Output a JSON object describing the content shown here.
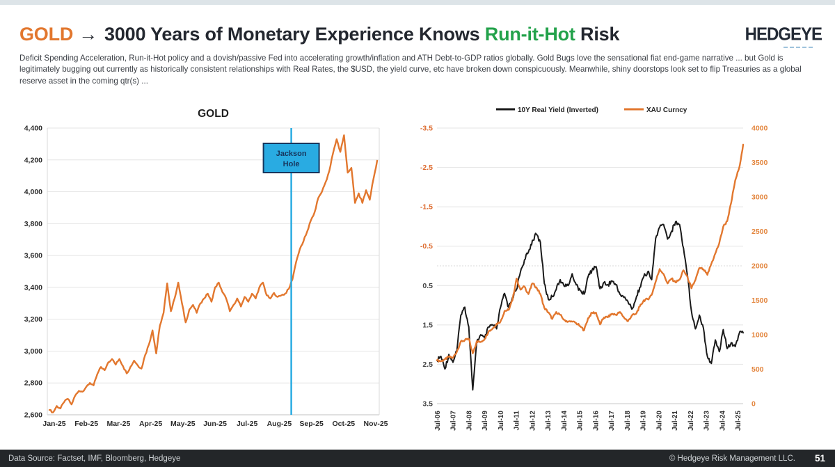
{
  "header": {
    "title_prefix": "GOLD",
    "title_arrow": "→",
    "title_main": "3000 Years of Monetary Experience Knows",
    "title_highlight": "Run-it-Hot",
    "title_suffix": " Risk",
    "logo": "HEDGEYE",
    "subtitle": "Deficit Spending Acceleration, Run-it-Hot policy and a dovish/passive Fed into accelerating growth/inflation and ATH Debt-to-GDP ratios globally. Gold Bugs love the sensational fiat end-game narrative ... but Gold is legitimately bugging out currently as historically consistent relationships with Real Rates, the $USD, the yield curve, etc have broken down conspicuously. Meanwhile, shiny doorstops look set to flip Treasuries as a global reserve asset in the coming qtr(s) ..."
  },
  "footer": {
    "source": "Data Source: Factset, IMF, Bloomberg, Hedgeye",
    "copyright": "© Hedgeye Risk Management LLC.",
    "page_number": "51"
  },
  "colors": {
    "accent_orange": "#e2772e",
    "accent_green": "#23a24b",
    "series_black": "#1a1a1a",
    "annotation_blue": "#29abe2",
    "annotation_border": "#17365d",
    "axis_orange_label": "#dd6b2f",
    "axis_gray_label": "#444444",
    "gridline": "#e4e4e4",
    "footer_bg": "#232629"
  },
  "chart_data": [
    {
      "type": "line",
      "title": "GOLD",
      "x_tick_labels": [
        "Jan-25",
        "Feb-25",
        "Mar-25",
        "Apr-25",
        "May-25",
        "Jun-25",
        "Jul-25",
        "Aug-25",
        "Sep-25",
        "Oct-25",
        "Nov-25"
      ],
      "y_tick_labels": [
        "2,600",
        "2,800",
        "3,000",
        "3,200",
        "3,400",
        "3,600",
        "3,800",
        "4,000",
        "4,200",
        "4,400"
      ],
      "y_tick_values": [
        2600,
        2800,
        3000,
        3200,
        3400,
        3600,
        3800,
        4000,
        4200,
        4400
      ],
      "ylim": [
        2600,
        4400
      ],
      "grid": true,
      "legend_position": "none",
      "annotation": {
        "label_lines": [
          "Jackson",
          "Hole"
        ],
        "line_x_fraction": 0.735
      },
      "series": [
        {
          "name": "GOLD",
          "color": "#e2772e",
          "values": [
            2630,
            2615,
            2655,
            2640,
            2680,
            2700,
            2665,
            2720,
            2750,
            2745,
            2775,
            2800,
            2785,
            2855,
            2900,
            2880,
            2930,
            2950,
            2915,
            2950,
            2905,
            2860,
            2900,
            2940,
            2910,
            2890,
            2975,
            3040,
            3130,
            2985,
            3160,
            3240,
            3425,
            3250,
            3330,
            3430,
            3300,
            3180,
            3260,
            3290,
            3240,
            3300,
            3330,
            3360,
            3310,
            3400,
            3430,
            3370,
            3330,
            3250,
            3290,
            3330,
            3280,
            3340,
            3310,
            3360,
            3330,
            3400,
            3430,
            3350,
            3330,
            3365,
            3340,
            3350,
            3360,
            3390,
            3450,
            3560,
            3640,
            3690,
            3750,
            3820,
            3870,
            3960,
            4000,
            4060,
            4130,
            4240,
            4330,
            4250,
            4355,
            4120,
            4150,
            3930,
            3990,
            3930,
            4010,
            3950,
            4080,
            4195
          ]
        }
      ]
    },
    {
      "type": "line",
      "title": "",
      "x_tick_labels": [
        "Jul-06",
        "Jul-07",
        "Jul-08",
        "Jul-09",
        "Jul-10",
        "Jul-11",
        "Jul-12",
        "Jul-13",
        "Jul-14",
        "Jul-15",
        "Jul-16",
        "Jul-17",
        "Jul-18",
        "Jul-19",
        "Jul-20",
        "Jul-21",
        "Jul-22",
        "Jul-23",
        "Jul-24",
        "Jul-25"
      ],
      "left_y_tick_labels": [
        "-3.5",
        "-2.5",
        "-1.5",
        "-0.5",
        "0.5",
        "1.5",
        "2.5",
        "3.5"
      ],
      "left_y_tick_values": [
        -3.5,
        -2.5,
        -1.5,
        -0.5,
        0.5,
        1.5,
        2.5,
        3.5
      ],
      "left_ylim_top_to_bottom": [
        -3.5,
        3.5
      ],
      "left_axis_inverted": true,
      "right_y_tick_labels": [
        "4000",
        "3500",
        "3000",
        "2500",
        "2000",
        "1500",
        "1000",
        "500",
        "0"
      ],
      "right_y_tick_values": [
        4000,
        3500,
        3000,
        2500,
        2000,
        1500,
        1000,
        500,
        0
      ],
      "right_ylim": [
        0,
        4000
      ],
      "grid": true,
      "legend_position": "top",
      "series": [
        {
          "name": "10Y Real Yield (Inverted)",
          "axis": "left",
          "color": "#1a1a1a",
          "values": [
            2.4,
            2.3,
            2.62,
            2.25,
            2.45,
            2.15,
            1.25,
            1.05,
            1.55,
            3.15,
            1.95,
            1.75,
            1.85,
            1.55,
            1.5,
            1.6,
            1.05,
            0.7,
            1.05,
            0.8,
            0.6,
            0.15,
            -0.15,
            -0.35,
            -0.65,
            -0.8,
            -0.6,
            0.45,
            0.85,
            0.78,
            0.6,
            0.35,
            0.52,
            0.5,
            0.2,
            0.48,
            0.62,
            0.72,
            0.28,
            0.1,
            0.02,
            0.58,
            0.42,
            0.48,
            0.38,
            0.48,
            0.72,
            0.8,
            0.9,
            1.1,
            0.85,
            0.55,
            0.28,
            0.15,
            0.35,
            -0.7,
            -0.98,
            -1.05,
            -0.68,
            -0.88,
            -1.12,
            -1.05,
            -0.45,
            0.25,
            1.15,
            1.6,
            1.25,
            1.58,
            2.3,
            2.48,
            1.88,
            2.18,
            1.62,
            2.1,
            1.95,
            2.05,
            1.72,
            1.7
          ]
        },
        {
          "name": "XAU Curncy",
          "axis": "right",
          "color": "#e2772e",
          "values": [
            630,
            615,
            645,
            680,
            665,
            755,
            905,
            920,
            940,
            730,
            905,
            895,
            940,
            1050,
            1090,
            1160,
            1195,
            1345,
            1360,
            1505,
            1815,
            1655,
            1700,
            1590,
            1745,
            1690,
            1590,
            1390,
            1325,
            1230,
            1330,
            1290,
            1215,
            1190,
            1190,
            1170,
            1125,
            1065,
            1240,
            1320,
            1320,
            1150,
            1250,
            1255,
            1305,
            1290,
            1330,
            1255,
            1195,
            1280,
            1300,
            1410,
            1500,
            1515,
            1580,
            1770,
            1955,
            1880,
            1745,
            1815,
            1760,
            1800,
            1935,
            1840,
            1675,
            1795,
            1970,
            1950,
            1870,
            2030,
            2180,
            2330,
            2570,
            2650,
            2920,
            3240,
            3420,
            3760
          ]
        }
      ]
    }
  ]
}
